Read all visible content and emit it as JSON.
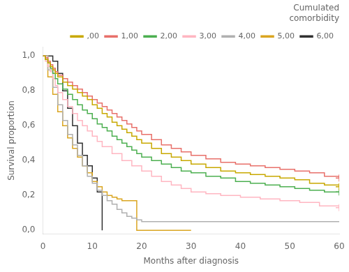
{
  "chart_data": {
    "type": "line",
    "line_style": "step",
    "marker": "+",
    "xlabel": "Months after diagnosis",
    "ylabel": "Survival proportion",
    "xlim": [
      0,
      60
    ],
    "ylim": [
      -0.02,
      1.05
    ],
    "xticks": [
      0,
      10,
      20,
      30,
      40,
      50,
      60
    ],
    "yticks": [
      {
        "value": 0.0,
        "label": "0,0"
      },
      {
        "value": 0.2,
        "label": "0,2"
      },
      {
        "value": 0.4,
        "label": "0,4"
      },
      {
        "value": 0.6,
        "label": "0,6"
      },
      {
        "value": 0.8,
        "label": "0,8"
      },
      {
        "value": 1.0,
        "label": "1,0"
      }
    ],
    "grid": false,
    "legend": "upper right",
    "legend_title": "Cumulated\ncomorbidity",
    "series": [
      {
        "name": ",00",
        "color": "#C8A800",
        "x": [
          0,
          0.5,
          1,
          1.5,
          2,
          2.5,
          3,
          4,
          5,
          6,
          7,
          8,
          9,
          10,
          11,
          12,
          13,
          14,
          15,
          16,
          17,
          18,
          19,
          20,
          22,
          24,
          26,
          28,
          30,
          33,
          36,
          39,
          42,
          45,
          48,
          51,
          54,
          57,
          60
        ],
        "values": [
          1.0,
          0.98,
          0.96,
          0.94,
          0.92,
          0.9,
          0.88,
          0.85,
          0.83,
          0.81,
          0.79,
          0.77,
          0.75,
          0.72,
          0.7,
          0.67,
          0.65,
          0.62,
          0.6,
          0.58,
          0.56,
          0.54,
          0.52,
          0.5,
          0.47,
          0.44,
          0.42,
          0.4,
          0.38,
          0.36,
          0.34,
          0.33,
          0.32,
          0.31,
          0.3,
          0.29,
          0.27,
          0.26,
          0.25
        ],
        "censor_x": 60,
        "censor_value": 0.25
      },
      {
        "name": "1,00",
        "color": "#E8706A",
        "x": [
          0,
          0.5,
          1,
          1.5,
          2,
          2.5,
          3,
          4,
          5,
          6,
          7,
          8,
          9,
          10,
          11,
          12,
          13,
          14,
          15,
          16,
          17,
          18,
          19,
          20,
          22,
          24,
          26,
          28,
          30,
          33,
          36,
          39,
          42,
          45,
          48,
          51,
          54,
          57,
          60
        ],
        "values": [
          1.0,
          0.99,
          0.97,
          0.95,
          0.93,
          0.91,
          0.89,
          0.87,
          0.85,
          0.83,
          0.81,
          0.79,
          0.77,
          0.75,
          0.73,
          0.71,
          0.69,
          0.67,
          0.65,
          0.63,
          0.61,
          0.59,
          0.57,
          0.55,
          0.52,
          0.49,
          0.47,
          0.45,
          0.43,
          0.41,
          0.39,
          0.38,
          0.37,
          0.36,
          0.35,
          0.34,
          0.33,
          0.31,
          0.3
        ],
        "censor_x": 60,
        "censor_value": 0.3
      },
      {
        "name": "2,00",
        "color": "#4CAF50",
        "x": [
          0,
          0.5,
          1,
          1.5,
          2,
          2.5,
          3,
          4,
          5,
          6,
          7,
          8,
          9,
          10,
          11,
          12,
          13,
          14,
          15,
          16,
          17,
          18,
          19,
          20,
          22,
          24,
          26,
          28,
          30,
          33,
          36,
          39,
          42,
          45,
          48,
          51,
          54,
          57,
          60
        ],
        "values": [
          1.0,
          0.98,
          0.96,
          0.93,
          0.9,
          0.87,
          0.84,
          0.81,
          0.78,
          0.75,
          0.72,
          0.69,
          0.67,
          0.64,
          0.61,
          0.59,
          0.57,
          0.54,
          0.52,
          0.5,
          0.48,
          0.46,
          0.44,
          0.42,
          0.4,
          0.38,
          0.36,
          0.34,
          0.33,
          0.31,
          0.3,
          0.28,
          0.27,
          0.26,
          0.25,
          0.24,
          0.23,
          0.22,
          0.22
        ],
        "censor_x": 60,
        "censor_value": 0.22
      },
      {
        "name": "3,00",
        "color": "#FFB6C1",
        "x": [
          0,
          0.5,
          1,
          1.5,
          2,
          2.5,
          3,
          4,
          5,
          6,
          7,
          8,
          9,
          10,
          11,
          12,
          14,
          16,
          18,
          20,
          22,
          24,
          26,
          28,
          30,
          33,
          36,
          40,
          44,
          48,
          52,
          56,
          60
        ],
        "values": [
          1.0,
          0.97,
          0.94,
          0.91,
          0.87,
          0.83,
          0.79,
          0.75,
          0.71,
          0.67,
          0.63,
          0.6,
          0.57,
          0.54,
          0.51,
          0.48,
          0.44,
          0.4,
          0.37,
          0.34,
          0.31,
          0.28,
          0.26,
          0.24,
          0.22,
          0.21,
          0.2,
          0.19,
          0.18,
          0.17,
          0.16,
          0.14,
          0.13
        ],
        "censor_x": 60,
        "censor_value": 0.13
      },
      {
        "name": "4,00",
        "color": "#B0B0B0",
        "x": [
          0,
          1,
          2,
          3,
          4,
          5,
          6,
          7,
          8,
          9,
          10,
          11,
          12,
          13,
          14,
          15,
          16,
          17,
          18,
          19,
          20,
          60
        ],
        "values": [
          1.0,
          0.92,
          0.82,
          0.72,
          0.63,
          0.55,
          0.49,
          0.43,
          0.37,
          0.31,
          0.27,
          0.23,
          0.2,
          0.17,
          0.15,
          0.12,
          0.1,
          0.08,
          0.07,
          0.06,
          0.05,
          0.05
        ]
      },
      {
        "name": "5,00",
        "color": "#DAA520",
        "x": [
          0,
          1,
          2,
          3,
          4,
          5,
          6,
          7,
          8,
          9,
          10,
          11,
          12,
          13,
          14,
          15,
          16,
          17,
          18,
          19,
          30
        ],
        "values": [
          1.0,
          0.88,
          0.78,
          0.68,
          0.6,
          0.53,
          0.47,
          0.42,
          0.37,
          0.33,
          0.28,
          0.25,
          0.22,
          0.2,
          0.19,
          0.18,
          0.17,
          0.17,
          0.17,
          0.0,
          0.0
        ]
      },
      {
        "name": "6,00",
        "color": "#303030",
        "x": [
          0,
          1,
          2,
          3,
          4,
          5,
          6,
          7,
          8,
          9,
          10,
          11,
          12
        ],
        "values": [
          1.0,
          1.0,
          0.97,
          0.9,
          0.8,
          0.7,
          0.6,
          0.5,
          0.43,
          0.37,
          0.3,
          0.22,
          0.0
        ]
      }
    ]
  }
}
